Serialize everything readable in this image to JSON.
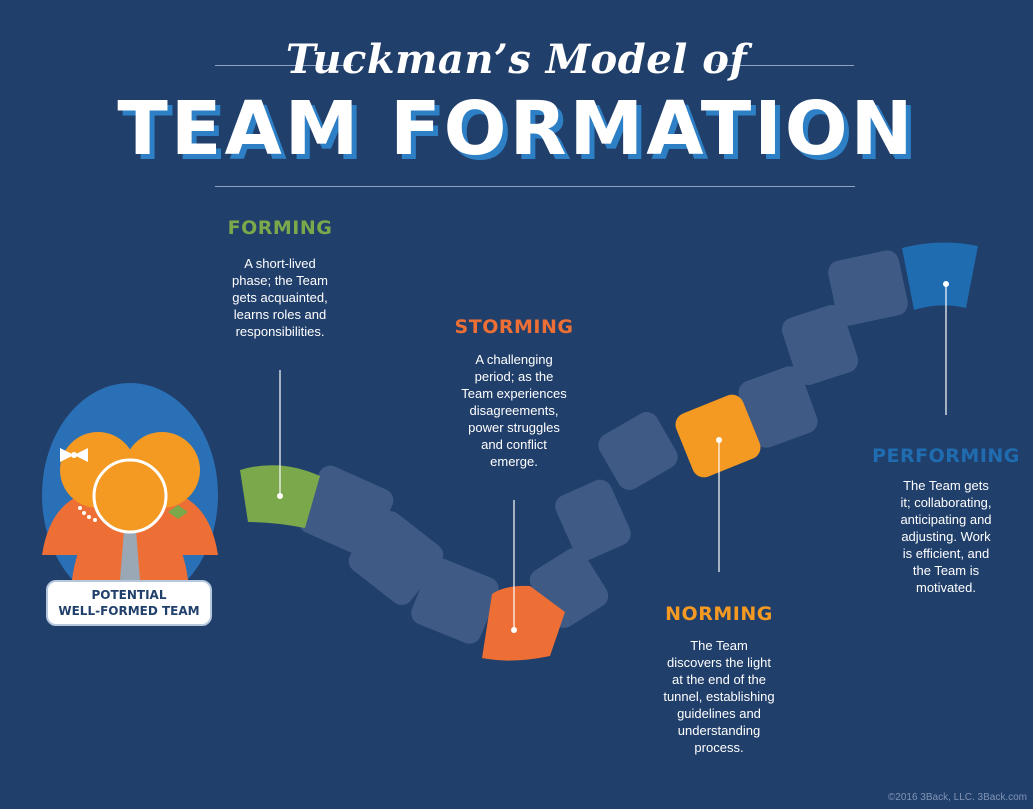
{
  "header": {
    "title_line1": "Tuckman’s Model of",
    "title_line2": "TEAM FORMATION"
  },
  "colors": {
    "background": "#213f6b",
    "forming": "#7aa84a",
    "storming": "#ed6f35",
    "norming": "#f49a23",
    "performing": "#1f6cb0",
    "path_tile": "#3e5a85",
    "title_shadow": "#2e80c6"
  },
  "stages": [
    {
      "id": "forming",
      "title": "FORMING",
      "description": [
        "A short-lived",
        "phase; the Team",
        "gets acquainted,",
        "learns roles and",
        "responsibilities."
      ]
    },
    {
      "id": "storming",
      "title": "STORMING",
      "description": [
        "A challenging",
        "period; as the",
        "Team experiences",
        "disagreements,",
        "power struggles",
        "and conflict",
        "emerge."
      ]
    },
    {
      "id": "norming",
      "title": "NORMING",
      "description": [
        "The Team",
        "discovers the light",
        "at the end of the",
        "tunnel, establishing",
        "guidelines and",
        "understanding",
        "process."
      ]
    },
    {
      "id": "performing",
      "title": "PERFORMING",
      "description": [
        "The Team gets",
        "it; collaborating,",
        "anticipating and",
        "adjusting. Work",
        "is efficient, and",
        "the Team is",
        "motivated."
      ]
    }
  ],
  "team_badge": {
    "line1": "POTENTIAL",
    "line2": "WELL-FORMED TEAM"
  },
  "icons": {
    "team": "team-people-icon",
    "bow": "bow-icon",
    "necklace": "necklace-icon",
    "tie": "tie-icon"
  },
  "footer": {
    "copyright": "©2016 3Back, LLC. 3Back.com"
  }
}
